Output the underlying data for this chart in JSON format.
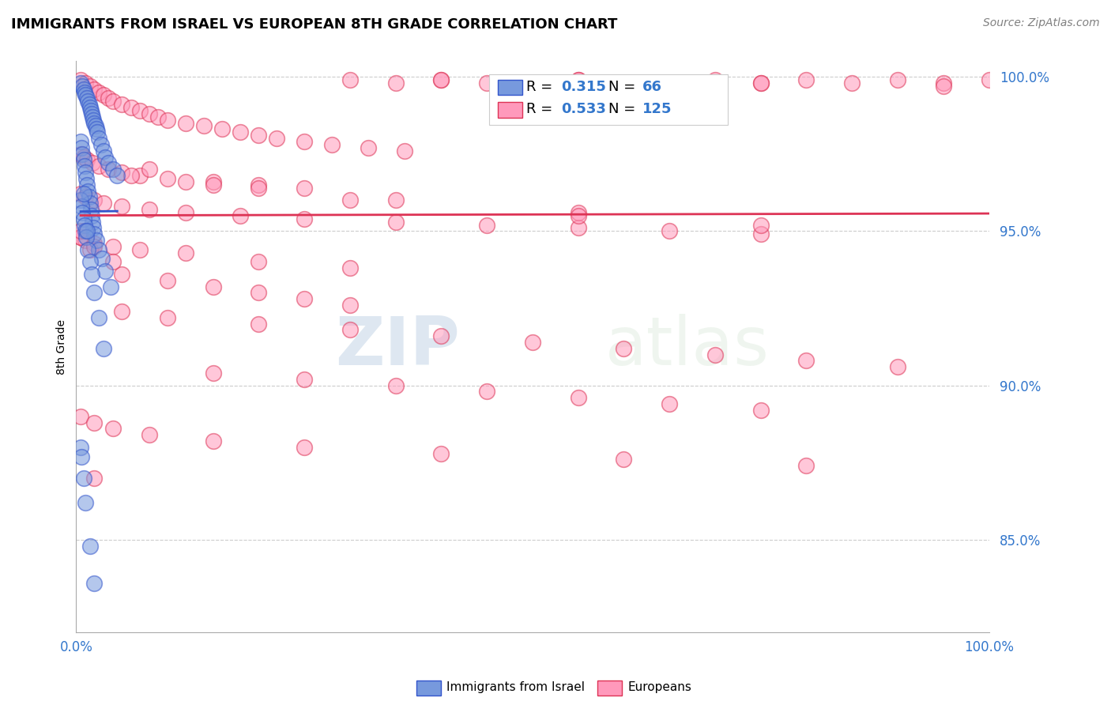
{
  "title": "IMMIGRANTS FROM ISRAEL VS EUROPEAN 8TH GRADE CORRELATION CHART",
  "source": "Source: ZipAtlas.com",
  "ylabel": "8th Grade",
  "xlim": [
    0.0,
    1.0
  ],
  "ylim": [
    0.82,
    1.005
  ],
  "yticks": [
    0.85,
    0.9,
    0.95,
    1.0
  ],
  "ytick_labels": [
    "85.0%",
    "90.0%",
    "95.0%",
    "100.0%"
  ],
  "israel_color": "#7799dd",
  "european_color": "#ff99bb",
  "israel_line_color": "#3355cc",
  "european_line_color": "#dd3355",
  "israel_R": 0.315,
  "israel_N": 66,
  "european_R": 0.533,
  "european_N": 125,
  "legend_label_israel": "Immigrants from Israel",
  "legend_label_european": "Europeans",
  "watermark_zip": "ZIP",
  "watermark_atlas": "atlas",
  "israel_x": [
    0.005,
    0.007,
    0.008,
    0.009,
    0.01,
    0.012,
    0.013,
    0.014,
    0.015,
    0.016,
    0.017,
    0.018,
    0.019,
    0.02,
    0.021,
    0.022,
    0.023,
    0.025,
    0.027,
    0.03,
    0.032,
    0.035,
    0.04,
    0.045,
    0.005,
    0.006,
    0.007,
    0.008,
    0.009,
    0.01,
    0.011,
    0.012,
    0.013,
    0.014,
    0.015,
    0.016,
    0.017,
    0.018,
    0.019,
    0.02,
    0.022,
    0.025,
    0.028,
    0.032,
    0.038,
    0.005,
    0.006,
    0.007,
    0.008,
    0.009,
    0.01,
    0.011,
    0.013,
    0.015,
    0.017,
    0.02,
    0.025,
    0.03,
    0.005,
    0.006,
    0.008,
    0.01,
    0.015,
    0.02,
    0.012,
    0.008
  ],
  "israel_y": [
    0.998,
    0.997,
    0.996,
    0.995,
    0.994,
    0.993,
    0.992,
    0.991,
    0.99,
    0.989,
    0.988,
    0.987,
    0.986,
    0.985,
    0.984,
    0.983,
    0.982,
    0.98,
    0.978,
    0.976,
    0.974,
    0.972,
    0.97,
    0.968,
    0.979,
    0.977,
    0.975,
    0.973,
    0.971,
    0.969,
    0.967,
    0.965,
    0.963,
    0.961,
    0.959,
    0.957,
    0.955,
    0.953,
    0.951,
    0.949,
    0.947,
    0.944,
    0.941,
    0.937,
    0.932,
    0.96,
    0.958,
    0.956,
    0.954,
    0.952,
    0.95,
    0.948,
    0.944,
    0.94,
    0.936,
    0.93,
    0.922,
    0.912,
    0.88,
    0.877,
    0.87,
    0.862,
    0.848,
    0.836,
    0.95,
    0.962
  ],
  "european_x": [
    0.005,
    0.01,
    0.015,
    0.02,
    0.025,
    0.03,
    0.035,
    0.04,
    0.05,
    0.06,
    0.07,
    0.08,
    0.09,
    0.1,
    0.12,
    0.14,
    0.16,
    0.18,
    0.2,
    0.22,
    0.25,
    0.28,
    0.32,
    0.36,
    0.4,
    0.45,
    0.5,
    0.55,
    0.6,
    0.65,
    0.7,
    0.75,
    0.8,
    0.85,
    0.9,
    0.95,
    1.0,
    0.005,
    0.008,
    0.012,
    0.018,
    0.025,
    0.035,
    0.05,
    0.07,
    0.1,
    0.15,
    0.2,
    0.25,
    0.3,
    0.35,
    0.4,
    0.005,
    0.01,
    0.02,
    0.03,
    0.05,
    0.08,
    0.12,
    0.18,
    0.25,
    0.35,
    0.45,
    0.55,
    0.65,
    0.75,
    0.005,
    0.01,
    0.02,
    0.04,
    0.07,
    0.12,
    0.2,
    0.3,
    0.05,
    0.1,
    0.15,
    0.2,
    0.25,
    0.3,
    0.05,
    0.1,
    0.2,
    0.3,
    0.4,
    0.5,
    0.6,
    0.7,
    0.8,
    0.9,
    0.15,
    0.25,
    0.35,
    0.45,
    0.55,
    0.65,
    0.75,
    0.005,
    0.02,
    0.04,
    0.08,
    0.15,
    0.25,
    0.4,
    0.6,
    0.8,
    0.02,
    0.06,
    0.12,
    0.2,
    0.35,
    0.55,
    0.75,
    0.005,
    0.015,
    0.04,
    0.08,
    0.15,
    0.3,
    0.55,
    0.005,
    0.02,
    0.55,
    0.75,
    0.95
  ],
  "european_y": [
    0.999,
    0.998,
    0.997,
    0.996,
    0.995,
    0.994,
    0.993,
    0.992,
    0.991,
    0.99,
    0.989,
    0.988,
    0.987,
    0.986,
    0.985,
    0.984,
    0.983,
    0.982,
    0.981,
    0.98,
    0.979,
    0.978,
    0.977,
    0.976,
    0.999,
    0.998,
    0.997,
    0.999,
    0.998,
    0.997,
    0.999,
    0.998,
    0.999,
    0.998,
    0.999,
    0.998,
    0.999,
    0.975,
    0.974,
    0.973,
    0.972,
    0.971,
    0.97,
    0.969,
    0.968,
    0.967,
    0.966,
    0.965,
    0.964,
    0.999,
    0.998,
    0.999,
    0.962,
    0.961,
    0.96,
    0.959,
    0.958,
    0.957,
    0.956,
    0.955,
    0.954,
    0.953,
    0.952,
    0.951,
    0.95,
    0.949,
    0.948,
    0.947,
    0.946,
    0.945,
    0.944,
    0.943,
    0.94,
    0.938,
    0.936,
    0.934,
    0.932,
    0.93,
    0.928,
    0.926,
    0.924,
    0.922,
    0.92,
    0.918,
    0.916,
    0.914,
    0.912,
    0.91,
    0.908,
    0.906,
    0.904,
    0.902,
    0.9,
    0.898,
    0.896,
    0.894,
    0.892,
    0.89,
    0.888,
    0.886,
    0.884,
    0.882,
    0.88,
    0.878,
    0.876,
    0.874,
    0.87,
    0.968,
    0.966,
    0.964,
    0.96,
    0.956,
    0.952,
    0.948,
    0.944,
    0.94,
    0.97,
    0.965,
    0.96,
    0.955,
    0.95,
    0.945,
    0.999,
    0.998,
    0.997,
    0.996,
    0.995
  ]
}
